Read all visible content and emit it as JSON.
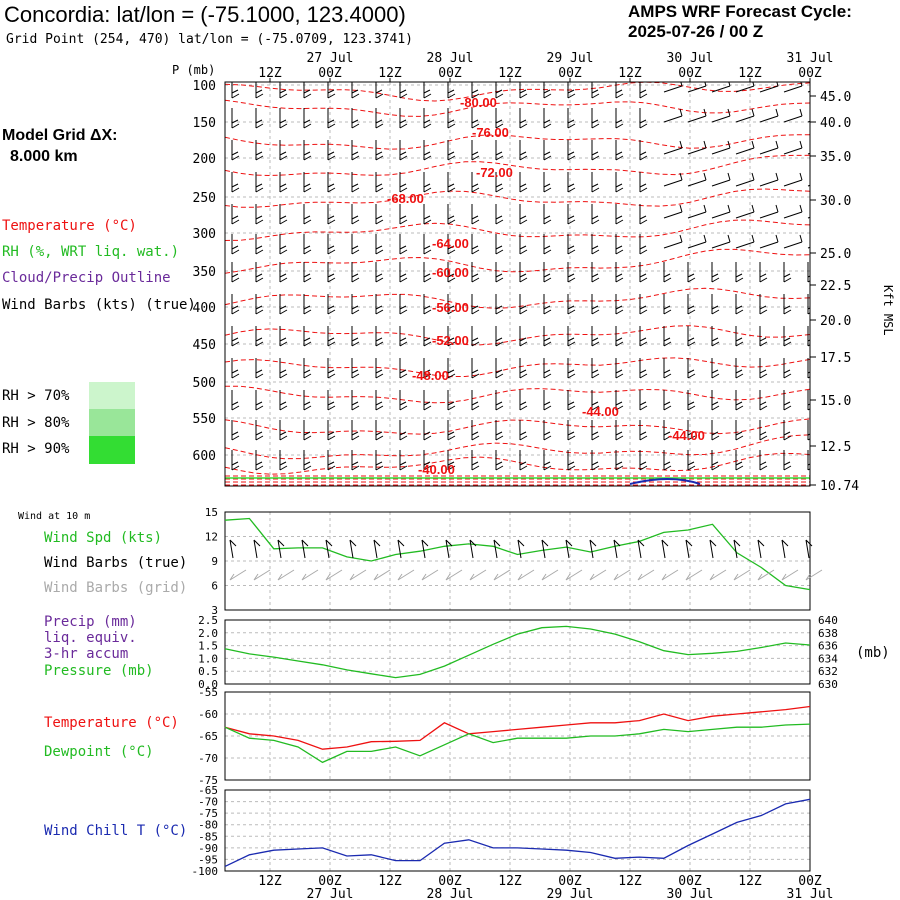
{
  "header": {
    "title": "Concordia:  lat/lon = (-75.1000, 123.4000)",
    "grid_point": "Grid Point (254, 470) lat/lon = (-75.0709, 123.3741)",
    "cycle_line1": "AMPS WRF Forecast Cycle:",
    "cycle_line2": "2025-07-26 / 00  Z",
    "model_grid_line1": "Model Grid ΔX:",
    "model_grid_line2": "8.000 km"
  },
  "colors": {
    "temperature": "#ee1111",
    "rh": "#22bb22",
    "cloud": "#6a2a9a",
    "wind_grid": "#aaaaaa",
    "wind_chill": "#1a2ab0",
    "rh70": "#ccf5cc",
    "rh80": "#99e699",
    "rh90": "#33dd33"
  },
  "legend": {
    "temperature": "Temperature (°C)",
    "rh": "RH (%, WRT liq. wat.)",
    "cloud": "Cloud/Precip Outline",
    "wind": "Wind Barbs (kts) (true)",
    "rh70": "RH > 70%",
    "rh80": "RH > 80%",
    "rh90": "RH > 90%"
  },
  "time_axis": {
    "top_ticks": [
      "12Z",
      "00Z",
      "12Z",
      "00Z",
      "12Z",
      "00Z",
      "12Z",
      "00Z",
      "12Z",
      "00Z"
    ],
    "top_dates": [
      "27 Jul",
      "28 Jul",
      "29 Jul",
      "30 Jul",
      "31 Jul"
    ],
    "bottom_ticks": [
      "12Z",
      "00Z",
      "12Z",
      "00Z",
      "12Z",
      "00Z",
      "12Z",
      "00Z",
      "12Z",
      "00Z"
    ],
    "bottom_dates": [
      "27 Jul",
      "28 Jul",
      "29 Jul",
      "30 Jul",
      "31 Jul"
    ]
  },
  "chart_data": [
    {
      "type": "contour",
      "name": "upper-air cross-section",
      "ylabel": "P (mb)",
      "y2label": "Kft MSL",
      "pressure_ticks": [
        100,
        150,
        200,
        250,
        300,
        350,
        400,
        450,
        500,
        550,
        600
      ],
      "height_ticks": [
        "45.0",
        "40.0",
        "35.0",
        "30.0",
        "25.0",
        "22.5",
        "20.0",
        "17.5",
        "15.0",
        "12.5",
        "10.74"
      ],
      "temperature_labels": [
        "-80.00",
        "-76.00",
        "-72.00",
        "-68.00",
        "-64.00",
        "-60.00",
        "-56.00",
        "-52.00",
        "-48.00",
        "-44.00",
        "-44.00",
        "-40.00"
      ]
    },
    {
      "type": "line",
      "title": "Wind at 10 m",
      "labels": {
        "speed": "Wind Spd (kts)",
        "barbs_true": "Wind Barbs (true)",
        "barbs_grid": "Wind Barbs (grid)"
      },
      "y_ticks": [
        "15",
        "12",
        "9",
        "6",
        "3"
      ],
      "ylim": [
        3,
        15
      ],
      "x_hours": [
        0,
        6,
        12,
        18,
        24,
        30,
        36,
        42,
        48,
        54,
        60,
        66,
        72,
        78,
        84,
        90,
        96,
        102,
        108,
        114,
        120,
        126,
        132,
        138,
        144
      ],
      "series": [
        {
          "name": "Wind Spd (kts)",
          "values": [
            14.0,
            14.2,
            10.5,
            10.6,
            10.6,
            9.5,
            9.0,
            9.8,
            10.2,
            10.8,
            11.1,
            10.8,
            9.8,
            10.3,
            10.7,
            10.1,
            10.8,
            11.4,
            12.5,
            12.8,
            13.5,
            10.0,
            8.2,
            6.0,
            5.5
          ]
        }
      ]
    },
    {
      "type": "line",
      "labels": {
        "precip": "Precip (mm)",
        "precip2": "liq. equiv.",
        "precip3": "3-hr accum",
        "pressure": "Pressure (mb)"
      },
      "y_ticks": [
        "2.5",
        "2.0",
        "1.5",
        "1.0",
        "0.5",
        "0.0"
      ],
      "y2_ticks": [
        "640",
        "638",
        "636",
        "634",
        "632",
        "630"
      ],
      "y2label": "(mb)",
      "ylim": [
        0,
        2.5
      ],
      "y2lim": [
        630,
        640
      ],
      "series": [
        {
          "name": "Pressure (mb)",
          "values": [
            635.5,
            634.7,
            634.2,
            633.6,
            633.0,
            632.2,
            631.6,
            631.0,
            631.5,
            632.8,
            634.5,
            636.2,
            637.8,
            638.8,
            639.0,
            638.6,
            637.8,
            636.6,
            635.2,
            634.6,
            634.8,
            635.1,
            635.7,
            636.4,
            636.1
          ]
        }
      ]
    },
    {
      "type": "line",
      "labels": {
        "temperature": "Temperature (°C)",
        "dewpoint": "Dewpoint (°C)"
      },
      "y_ticks": [
        "-55",
        "-60",
        "-65",
        "-70",
        "-75"
      ],
      "ylim": [
        -75,
        -55
      ],
      "series": [
        {
          "name": "Temperature (°C)",
          "values": [
            -63,
            -64.5,
            -65,
            -66,
            -68,
            -67.5,
            -66.3,
            -66.2,
            -66,
            -62,
            -64.5,
            -64,
            -63.5,
            -63,
            -62.5,
            -62,
            -62,
            -61.5,
            -60,
            -61.5,
            -60.5,
            -60,
            -59.5,
            -59,
            -58.3
          ]
        },
        {
          "name": "Dewpoint (°C)",
          "values": [
            -63,
            -65.5,
            -66,
            -67.5,
            -71,
            -68.5,
            -68.5,
            -67.5,
            -69.5,
            -67,
            -64.5,
            -66.5,
            -65.5,
            -65.5,
            -65.5,
            -65,
            -65,
            -64.5,
            -63.5,
            -64,
            -63.5,
            -63,
            -63,
            -62.5,
            -62.3
          ]
        }
      ]
    },
    {
      "type": "line",
      "labels": {
        "windchill": "Wind Chill T (°C)"
      },
      "y_ticks": [
        "-65",
        "-70",
        "-75",
        "-80",
        "-85",
        "-90",
        "-95",
        "-100"
      ],
      "ylim": [
        -100,
        -65
      ],
      "series": [
        {
          "name": "Wind Chill T (°C)",
          "values": [
            -98,
            -93,
            -91,
            -90.5,
            -90,
            -93.5,
            -93,
            -95.5,
            -95.5,
            -88,
            -86.5,
            -90,
            -90,
            -90.5,
            -91,
            -92,
            -94.5,
            -94,
            -94.5,
            -89,
            -84,
            -79,
            -76,
            -71,
            -69
          ]
        }
      ]
    }
  ]
}
